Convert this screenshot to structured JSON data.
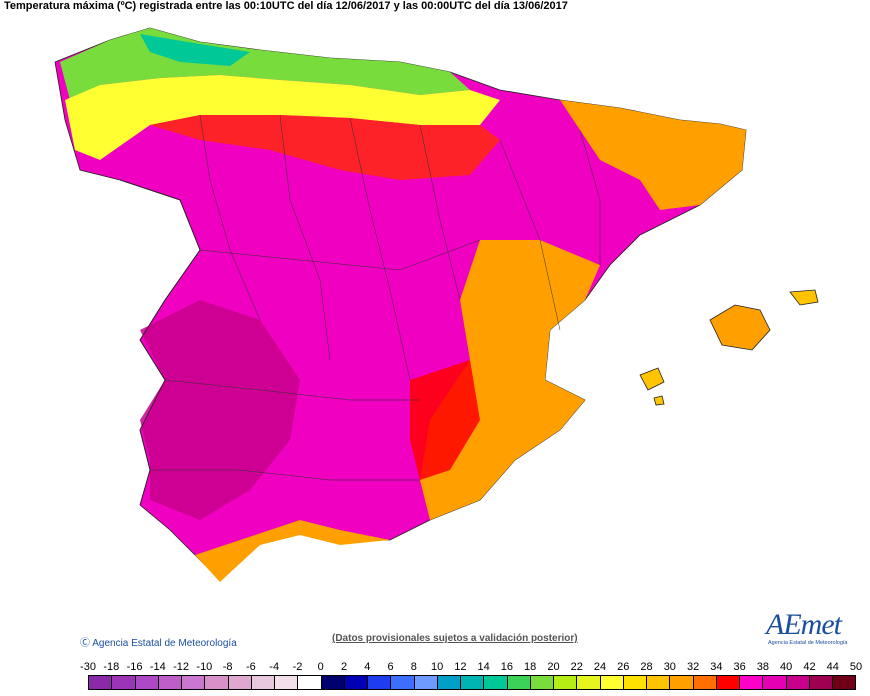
{
  "title": "Temperatura máxima (ºC) registrada entre las 00:10UTC del día 12/06/2017 y las 00:00UTC del día 13/06/2017",
  "footer": {
    "copyright": "Ⓒ Agencia Estatal de Meteorología",
    "note": "(Datos provisionales sujetos a validación posterior)"
  },
  "logo": {
    "text": "AEmet",
    "subtitle": "Agencia Estatal de Meteorología"
  },
  "legend": {
    "labels": [
      "-30",
      "-18",
      "-16",
      "-14",
      "-12",
      "-10",
      "-8",
      "-6",
      "-4",
      "-2",
      "0",
      "2",
      "4",
      "6",
      "8",
      "10",
      "12",
      "14",
      "16",
      "18",
      "20",
      "22",
      "24",
      "26",
      "28",
      "30",
      "32",
      "34",
      "36",
      "38",
      "40",
      "42",
      "44",
      "50"
    ],
    "colors": [
      "#8a2aa8",
      "#9b35b8",
      "#ad49c4",
      "#bd5ec9",
      "#cb77cf",
      "#d890c8",
      "#dfa8d0",
      "#e8c8de",
      "#f2dfea",
      "#ffffff",
      "#00006e",
      "#0000b4",
      "#1e3cf0",
      "#3c6eff",
      "#6e9bff",
      "#00a0c8",
      "#00b4b4",
      "#00c896",
      "#3cd25a",
      "#78dc3c",
      "#b4ee14",
      "#e6f51e",
      "#ffff32",
      "#ffe100",
      "#ffc300",
      "#ffa000",
      "#ff6e00",
      "#ff0000",
      "#ff00c8",
      "#e600b4",
      "#c8008c",
      "#a00050",
      "#700018"
    ]
  }
}
